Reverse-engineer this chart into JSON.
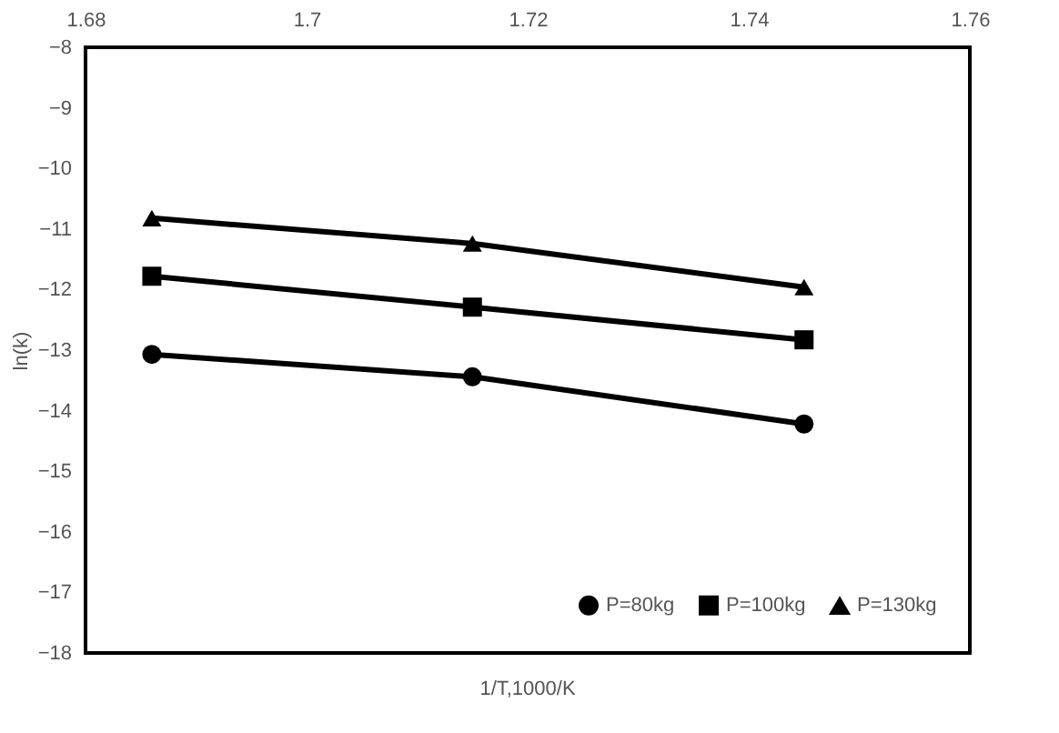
{
  "chart_data": {
    "type": "line",
    "xlabel": "1/T,1000/K",
    "ylabel": "ln(k)",
    "x": [
      1.686,
      1.715,
      1.745
    ],
    "series": [
      {
        "name": "P=80kg",
        "color": "#000000",
        "marker": "circle",
        "values": [
          -13.07,
          -13.44,
          -14.22
        ]
      },
      {
        "name": "P=100kg",
        "color": "#000000",
        "marker": "square",
        "values": [
          -11.78,
          -12.29,
          -12.83
        ]
      },
      {
        "name": "P=130kg",
        "color": "#000000",
        "marker": "triangle",
        "values": [
          -10.82,
          -11.24,
          -11.96
        ]
      }
    ],
    "xlim": [
      1.68,
      1.76
    ],
    "xticks": [
      1.68,
      1.7,
      1.72,
      1.74,
      1.76
    ],
    "ylim": [
      -18,
      -8
    ],
    "yticks": [
      -8,
      -9,
      -10,
      -11,
      -12,
      -13,
      -14,
      -15,
      -16,
      -17,
      -18
    ],
    "grid": false,
    "legend": "bottom right",
    "line_style": "solid"
  }
}
